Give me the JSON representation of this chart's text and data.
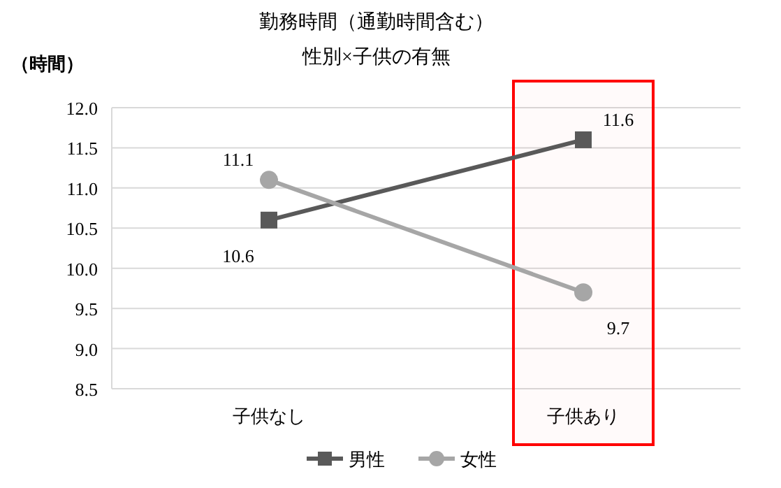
{
  "chart_data": {
    "type": "line",
    "title": "勤務時間（通勤時間含む）",
    "subtitle": "性別×子供の有無",
    "ylabel": "（時間）",
    "categories": [
      "子供なし",
      "子供あり"
    ],
    "series": [
      {
        "name": "男性",
        "color": "#595959",
        "values": [
          10.6,
          11.6
        ],
        "marker": "square"
      },
      {
        "name": "女性",
        "color": "#a6a6a6",
        "values": [
          11.1,
          9.7
        ],
        "marker": "circle"
      }
    ],
    "ylim": [
      8.5,
      12.0
    ],
    "yticks": [
      {
        "value": 8.5,
        "label": "8.5"
      },
      {
        "value": 9,
        "label": "9.0"
      },
      {
        "value": 9.5,
        "label": "9.5"
      },
      {
        "value": 10,
        "label": "10.0"
      },
      {
        "value": 10.5,
        "label": "10.5"
      },
      {
        "value": 11,
        "label": "11.0"
      },
      {
        "value": 11.5,
        "label": "11.5"
      },
      {
        "value": 12,
        "label": "12.0"
      }
    ],
    "grid": "y",
    "legend": "bottom",
    "data_labels": true,
    "line_style": "solid",
    "bands": [
      {
        "axis": "x",
        "from": "子供あり",
        "to": "子供あり",
        "color": "#ff0000"
      }
    ]
  }
}
